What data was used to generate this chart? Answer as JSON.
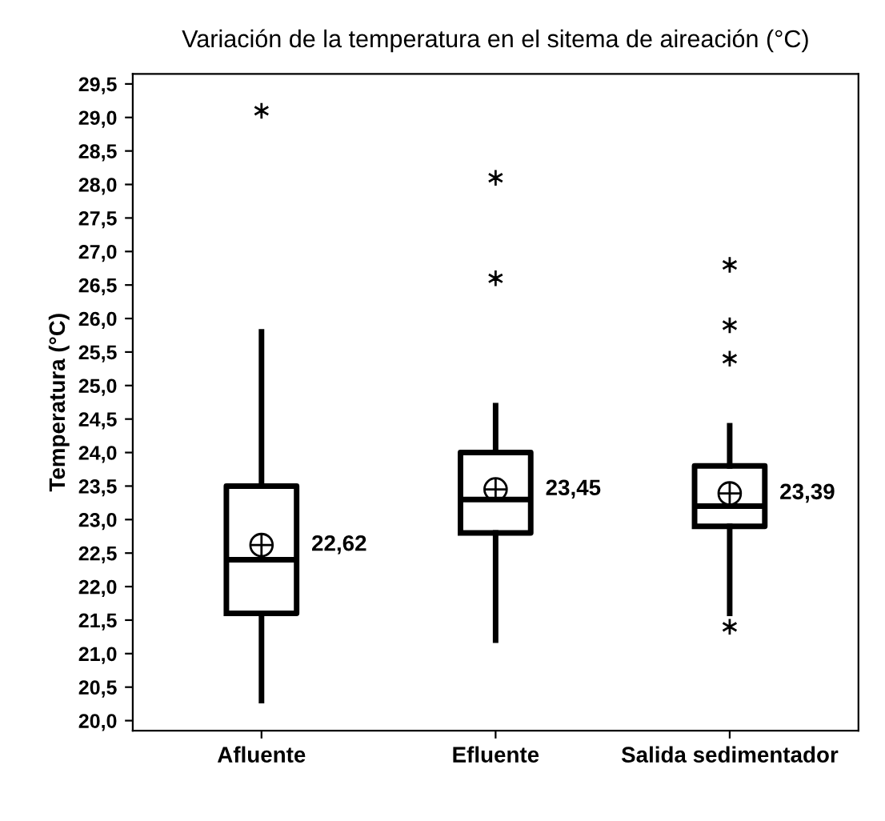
{
  "chart_data": {
    "type": "box",
    "title": "Variación de la temperatura en el sitema de aireación (°C)",
    "ylabel": "Temperatura (°C)",
    "categories": [
      "Afluente",
      "Efluente",
      "Salida sedimentador"
    ],
    "boxes": [
      {
        "low": 20.3,
        "q1": 21.6,
        "median": 22.4,
        "q3": 23.5,
        "high": 25.8,
        "mean": 22.62,
        "outliers": [
          29.1
        ]
      },
      {
        "low": 21.2,
        "q1": 22.8,
        "median": 23.3,
        "q3": 24.0,
        "high": 24.7,
        "mean": 23.45,
        "outliers": [
          28.1,
          26.6
        ]
      },
      {
        "low": 21.6,
        "q1": 22.9,
        "median": 23.2,
        "q3": 23.8,
        "high": 24.4,
        "mean": 23.39,
        "outliers": [
          26.8,
          25.9,
          25.4,
          21.4
        ]
      }
    ],
    "annotations": [
      "22,62",
      "23,45",
      "23,39"
    ],
    "ylim": [
      19.85,
      29.65
    ],
    "yticks": [
      {
        "value": 20.0,
        "label": "20,0"
      },
      {
        "value": 20.5,
        "label": "20,5"
      },
      {
        "value": 21.0,
        "label": "21,0"
      },
      {
        "value": 21.5,
        "label": "21,5"
      },
      {
        "value": 22.0,
        "label": "22,0"
      },
      {
        "value": 22.5,
        "label": "22,5"
      },
      {
        "value": 23.0,
        "label": "23,0"
      },
      {
        "value": 23.5,
        "label": "23,5"
      },
      {
        "value": 24.0,
        "label": "24,0"
      },
      {
        "value": 24.5,
        "label": "24,5"
      },
      {
        "value": 25.0,
        "label": "25,0"
      },
      {
        "value": 25.5,
        "label": "25,5"
      },
      {
        "value": 26.0,
        "label": "26,0"
      },
      {
        "value": 26.5,
        "label": "26,5"
      },
      {
        "value": 27.0,
        "label": "27,0"
      },
      {
        "value": 27.5,
        "label": "27,5"
      },
      {
        "value": 28.0,
        "label": "28,0"
      },
      {
        "value": 28.5,
        "label": "28,5"
      },
      {
        "value": 29.0,
        "label": "29,0"
      },
      {
        "value": 29.5,
        "label": "29,5"
      }
    ],
    "grid": false,
    "legend": false
  }
}
